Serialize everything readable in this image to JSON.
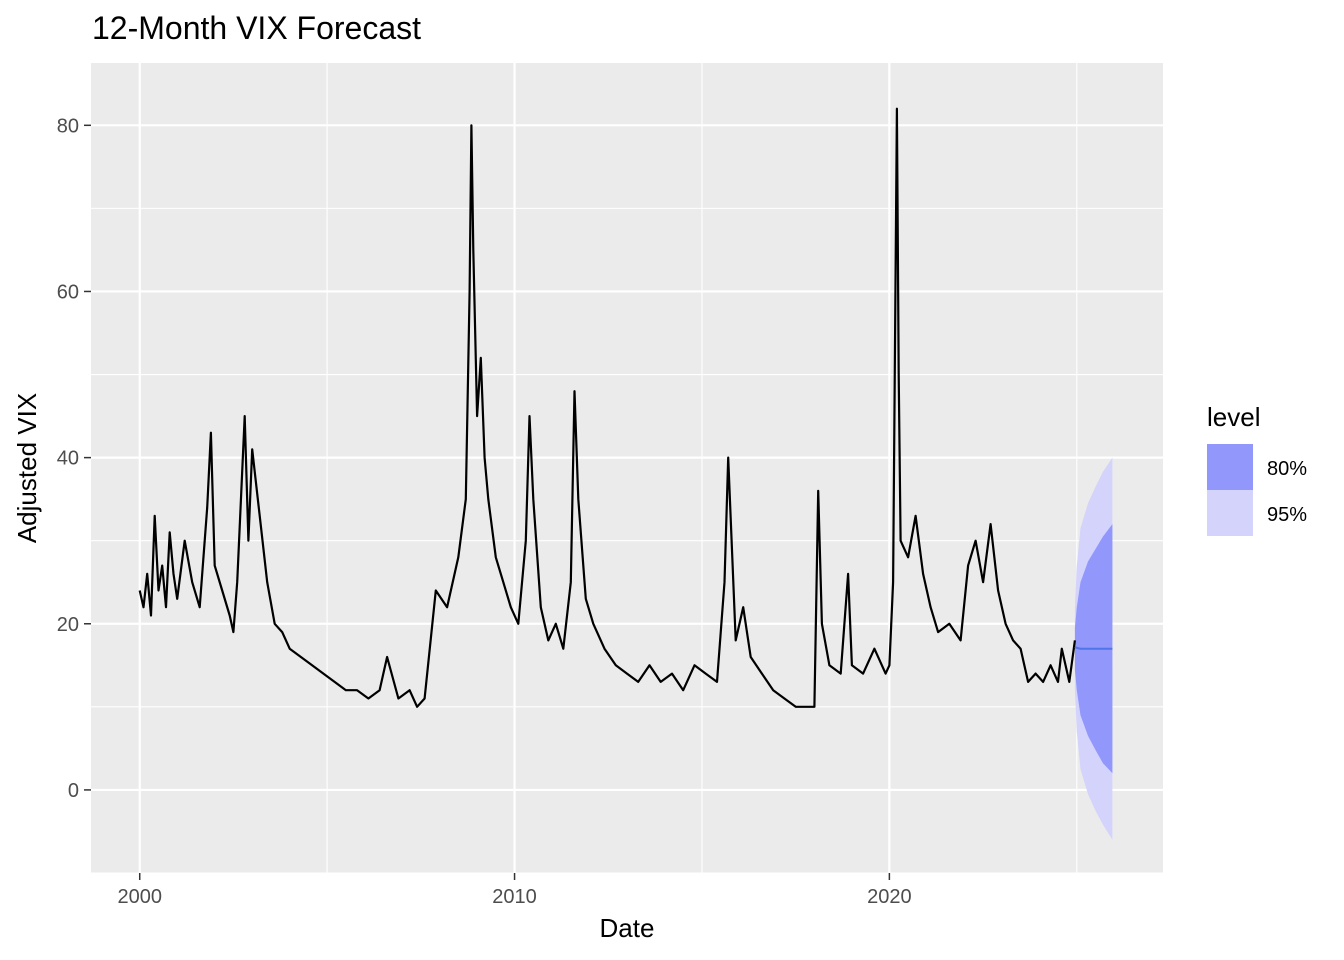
{
  "chart_data": {
    "type": "line",
    "title": "12-Month VIX Forecast",
    "xlabel": "Date",
    "ylabel": "Adjusted VIX",
    "xlim": [
      1998.7,
      2027.3
    ],
    "ylim": [
      -10.0,
      87.5
    ],
    "x_ticks": [
      2000,
      2010,
      2020
    ],
    "x_minor_ticks": [
      2005,
      2015,
      2025
    ],
    "y_ticks": [
      0,
      20,
      40,
      60,
      80
    ],
    "y_minor_ticks": [
      -10,
      10,
      30,
      50,
      70
    ],
    "grid": true,
    "legend": {
      "title": "level",
      "placement": "right",
      "entries": [
        {
          "label": "80%",
          "color": "#9197fb"
        },
        {
          "label": "95%",
          "color": "#d3d3fc"
        }
      ]
    },
    "colors": {
      "panel": "#ebebeb",
      "grid": "#ffffff",
      "history_line": "#000000",
      "forecast_line": "#4f75e8",
      "band_80": "#9197fb",
      "band_95": "#d3d3fc"
    },
    "series": [
      {
        "role": "history",
        "x": [
          2000.0,
          2000.1,
          2000.2,
          2000.3,
          2000.4,
          2000.5,
          2000.6,
          2000.7,
          2000.8,
          2000.9,
          2001.0,
          2001.2,
          2001.4,
          2001.6,
          2001.8,
          2001.9,
          2002.0,
          2002.2,
          2002.4,
          2002.5,
          2002.6,
          2002.8,
          2002.9,
          2003.0,
          2003.2,
          2003.4,
          2003.6,
          2003.8,
          2004.0,
          2004.3,
          2004.6,
          2004.9,
          2005.2,
          2005.5,
          2005.8,
          2006.1,
          2006.4,
          2006.6,
          2006.9,
          2007.2,
          2007.4,
          2007.6,
          2007.9,
          2008.2,
          2008.5,
          2008.7,
          2008.8,
          2008.85,
          2008.9,
          2009.0,
          2009.1,
          2009.2,
          2009.3,
          2009.5,
          2009.7,
          2009.9,
          2010.1,
          2010.3,
          2010.4,
          2010.5,
          2010.7,
          2010.9,
          2011.1,
          2011.3,
          2011.5,
          2011.6,
          2011.7,
          2011.9,
          2012.1,
          2012.4,
          2012.7,
          2013.0,
          2013.3,
          2013.6,
          2013.9,
          2014.2,
          2014.5,
          2014.8,
          2015.1,
          2015.4,
          2015.6,
          2015.7,
          2015.9,
          2016.1,
          2016.3,
          2016.6,
          2016.9,
          2017.2,
          2017.5,
          2017.8,
          2018.0,
          2018.1,
          2018.2,
          2018.4,
          2018.7,
          2018.9,
          2019.0,
          2019.3,
          2019.6,
          2019.9,
          2020.0,
          2020.1,
          2020.2,
          2020.25,
          2020.3,
          2020.5,
          2020.7,
          2020.9,
          2021.1,
          2021.3,
          2021.6,
          2021.9,
          2022.1,
          2022.3,
          2022.5,
          2022.7,
          2022.9,
          2023.1,
          2023.3,
          2023.5,
          2023.7,
          2023.9,
          2024.1,
          2024.3,
          2024.5,
          2024.6,
          2024.8,
          2024.95
        ],
        "y": [
          24,
          22,
          26,
          21,
          33,
          24,
          27,
          22,
          31,
          26,
          23,
          30,
          25,
          22,
          34,
          43,
          27,
          24,
          21,
          19,
          25,
          45,
          30,
          41,
          33,
          25,
          20,
          19,
          17,
          16,
          15,
          14,
          13,
          12,
          12,
          11,
          12,
          16,
          11,
          12,
          10,
          11,
          24,
          22,
          28,
          35,
          60,
          80,
          65,
          45,
          52,
          40,
          35,
          28,
          25,
          22,
          20,
          30,
          45,
          35,
          22,
          18,
          20,
          17,
          25,
          48,
          35,
          23,
          20,
          17,
          15,
          14,
          13,
          15,
          13,
          14,
          12,
          15,
          14,
          13,
          25,
          40,
          18,
          22,
          16,
          14,
          12,
          11,
          10,
          10,
          10,
          36,
          20,
          15,
          14,
          26,
          15,
          14,
          17,
          14,
          15,
          25,
          82,
          50,
          30,
          28,
          33,
          26,
          22,
          19,
          20,
          18,
          27,
          30,
          25,
          32,
          24,
          20,
          18,
          17,
          13,
          14,
          13,
          15,
          13,
          17,
          13,
          18
        ]
      },
      {
        "role": "forecast",
        "x": [
          2024.95,
          2025.0,
          2025.1,
          2025.3,
          2025.5,
          2025.7,
          2025.95
        ],
        "mean": [
          17.2,
          17.1,
          17.0,
          17.0,
          17.0,
          17.0,
          17.0
        ],
        "lo80": [
          14.5,
          12.0,
          9.0,
          6.5,
          4.8,
          3.2,
          2.0
        ],
        "hi80": [
          19.5,
          22.0,
          25.0,
          27.5,
          29.0,
          30.5,
          32.0
        ],
        "lo95": [
          12.0,
          7.0,
          2.5,
          -0.5,
          -2.5,
          -4.2,
          -6.0
        ],
        "hi95": [
          22.0,
          27.0,
          31.5,
          34.5,
          36.5,
          38.3,
          40.0
        ]
      }
    ]
  }
}
